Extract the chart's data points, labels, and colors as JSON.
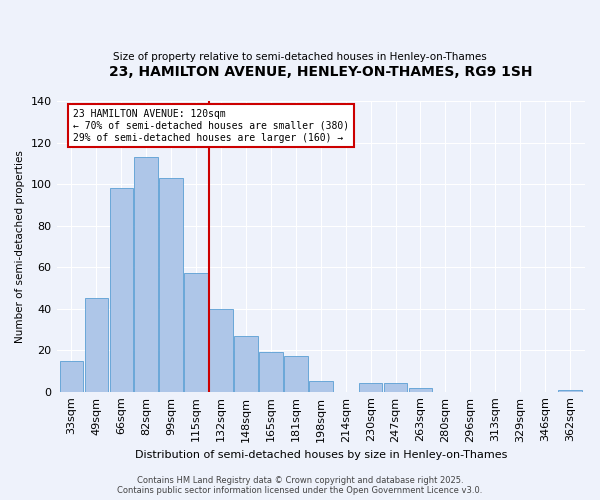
{
  "title": "23, HAMILTON AVENUE, HENLEY-ON-THAMES, RG9 1SH",
  "subtitle": "Size of property relative to semi-detached houses in Henley-on-Thames",
  "xlabel": "Distribution of semi-detached houses by size in Henley-on-Thames",
  "ylabel": "Number of semi-detached properties",
  "categories": [
    "33sqm",
    "49sqm",
    "66sqm",
    "82sqm",
    "99sqm",
    "115sqm",
    "132sqm",
    "148sqm",
    "165sqm",
    "181sqm",
    "198sqm",
    "214sqm",
    "230sqm",
    "247sqm",
    "263sqm",
    "280sqm",
    "296sqm",
    "313sqm",
    "329sqm",
    "346sqm",
    "362sqm"
  ],
  "values": [
    15,
    45,
    98,
    113,
    103,
    57,
    40,
    27,
    19,
    17,
    5,
    0,
    4,
    4,
    2,
    0,
    0,
    0,
    0,
    0,
    1
  ],
  "bar_color": "#aec6e8",
  "bar_edge_color": "#5a9fd4",
  "property_line_x": 5.5,
  "property_size": "120sqm",
  "pct_smaller": 70,
  "n_smaller": 380,
  "pct_larger": 29,
  "n_larger": 160,
  "vline_color": "#cc0000",
  "background_color": "#eef2fb",
  "footer": "Contains HM Land Registry data © Crown copyright and database right 2025.\nContains public sector information licensed under the Open Government Licence v3.0.",
  "ylim": [
    0,
    140
  ],
  "ann_label": "23 HAMILTON AVENUE: 120sqm",
  "ann_line2": "← 70% of semi-detached houses are smaller (380)",
  "ann_line3": "29% of semi-detached houses are larger (160) →"
}
